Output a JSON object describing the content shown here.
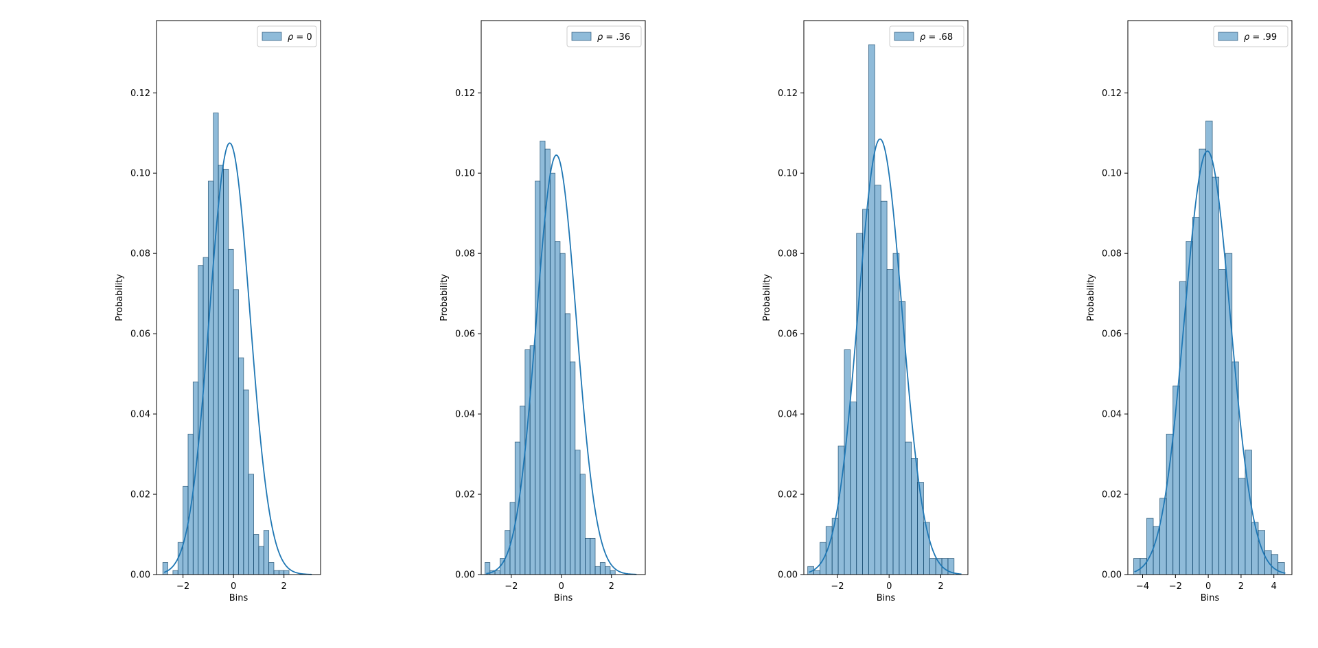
{
  "colors": {
    "bar_fill": "#1f77b4",
    "bar_fill_opacity": 0.5,
    "bar_edge": "#0b3d62",
    "kde_line": "#1f77b4",
    "axes": "#000000",
    "background": "#ffffff"
  },
  "chart_data": [
    {
      "type": "bar",
      "legend": {
        "rho_symbol": "ρ",
        "value_text": " = 0",
        "placement": "upper right"
      },
      "xlabel": "Bins",
      "ylabel": "Probability",
      "xlim": [
        -3.05,
        3.45
      ],
      "ylim": [
        0,
        0.138
      ],
      "xticks": [
        "−2",
        "0",
        "2"
      ],
      "xtick_values": [
        -2,
        0,
        2
      ],
      "yticks": [
        "0.00",
        "0.02",
        "0.04",
        "0.06",
        "0.08",
        "0.10",
        "0.12"
      ],
      "ytick_values": [
        0,
        0.02,
        0.04,
        0.06,
        0.08,
        0.1,
        0.12
      ],
      "bin_start": -2.8,
      "bin_width": 0.2,
      "values": [
        0.003,
        0.0,
        0.001,
        0.008,
        0.022,
        0.035,
        0.048,
        0.077,
        0.079,
        0.098,
        0.115,
        0.102,
        0.101,
        0.081,
        0.071,
        0.054,
        0.046,
        0.025,
        0.01,
        0.007,
        0.011,
        0.003,
        0.001,
        0.001,
        0.001
      ],
      "kde": {
        "mean": -0.15,
        "std": 0.8,
        "peak": 0.1075,
        "x_range": [
          -2.75,
          3.1
        ]
      }
    },
    {
      "type": "bar",
      "legend": {
        "rho_symbol": "ρ",
        "value_text": " = .36",
        "placement": "upper right"
      },
      "xlabel": "Bins",
      "ylabel": "Probability",
      "xlim": [
        -3.2,
        3.35
      ],
      "ylim": [
        0,
        0.138
      ],
      "xticks": [
        "−2",
        "0",
        "2"
      ],
      "xtick_values": [
        -2,
        0,
        2
      ],
      "yticks": [
        "0.00",
        "0.02",
        "0.04",
        "0.06",
        "0.08",
        "0.10",
        "0.12"
      ],
      "ytick_values": [
        0,
        0.02,
        0.04,
        0.06,
        0.08,
        0.1,
        0.12
      ],
      "bin_start": -3.05,
      "bin_width": 0.2,
      "values": [
        0.003,
        0.001,
        0.001,
        0.004,
        0.011,
        0.018,
        0.033,
        0.042,
        0.056,
        0.057,
        0.098,
        0.108,
        0.106,
        0.1,
        0.083,
        0.08,
        0.065,
        0.053,
        0.031,
        0.025,
        0.009,
        0.009,
        0.002,
        0.003,
        0.002,
        0.001
      ],
      "kde": {
        "mean": -0.2,
        "std": 0.8,
        "peak": 0.1045,
        "x_range": [
          -3.0,
          3.0
        ]
      }
    },
    {
      "type": "bar",
      "legend": {
        "rho_symbol": "ρ",
        "value_text": " = .68",
        "placement": "upper right"
      },
      "xlabel": "Bins",
      "ylabel": "Probability",
      "xlim": [
        -3.3,
        3.05
      ],
      "ylim": [
        0,
        0.138
      ],
      "xticks": [
        "−2",
        "0",
        "2"
      ],
      "xtick_values": [
        -2,
        0,
        2
      ],
      "yticks": [
        "0.00",
        "0.02",
        "0.04",
        "0.06",
        "0.08",
        "0.10",
        "0.12"
      ],
      "ytick_values": [
        0,
        0.02,
        0.04,
        0.06,
        0.08,
        0.1,
        0.12
      ],
      "bin_start": -3.15,
      "bin_width": 0.236,
      "values": [
        0.002,
        0.001,
        0.008,
        0.012,
        0.014,
        0.032,
        0.056,
        0.043,
        0.085,
        0.091,
        0.132,
        0.097,
        0.093,
        0.076,
        0.08,
        0.068,
        0.033,
        0.029,
        0.023,
        0.013,
        0.004,
        0.004,
        0.004,
        0.004
      ],
      "kde": {
        "mean": -0.35,
        "std": 0.85,
        "peak": 0.1085,
        "x_range": [
          -3.1,
          2.8
        ]
      }
    },
    {
      "type": "bar",
      "legend": {
        "rho_symbol": "ρ",
        "value_text": " = .99",
        "placement": "upper right"
      },
      "xlabel": "Bins",
      "ylabel": "Probability",
      "xlim": [
        -4.9,
        5.1
      ],
      "ylim": [
        0,
        0.138
      ],
      "xticks": [
        "−4",
        "−2",
        "0",
        "2",
        "4"
      ],
      "xtick_values": [
        -4,
        -2,
        0,
        2,
        4
      ],
      "yticks": [
        "0.00",
        "0.02",
        "0.04",
        "0.06",
        "0.08",
        "0.10",
        "0.12"
      ],
      "ytick_values": [
        0,
        0.02,
        0.04,
        0.06,
        0.08,
        0.1,
        0.12
      ],
      "bin_start": -4.55,
      "bin_width": 0.4,
      "values": [
        0.004,
        0.004,
        0.014,
        0.012,
        0.019,
        0.035,
        0.047,
        0.073,
        0.083,
        0.089,
        0.106,
        0.113,
        0.099,
        0.076,
        0.08,
        0.053,
        0.024,
        0.031,
        0.013,
        0.011,
        0.006,
        0.005,
        0.003
      ],
      "kde": {
        "mean": -0.05,
        "std": 1.4,
        "peak": 0.1055,
        "x_range": [
          -4.5,
          4.7
        ]
      }
    }
  ]
}
